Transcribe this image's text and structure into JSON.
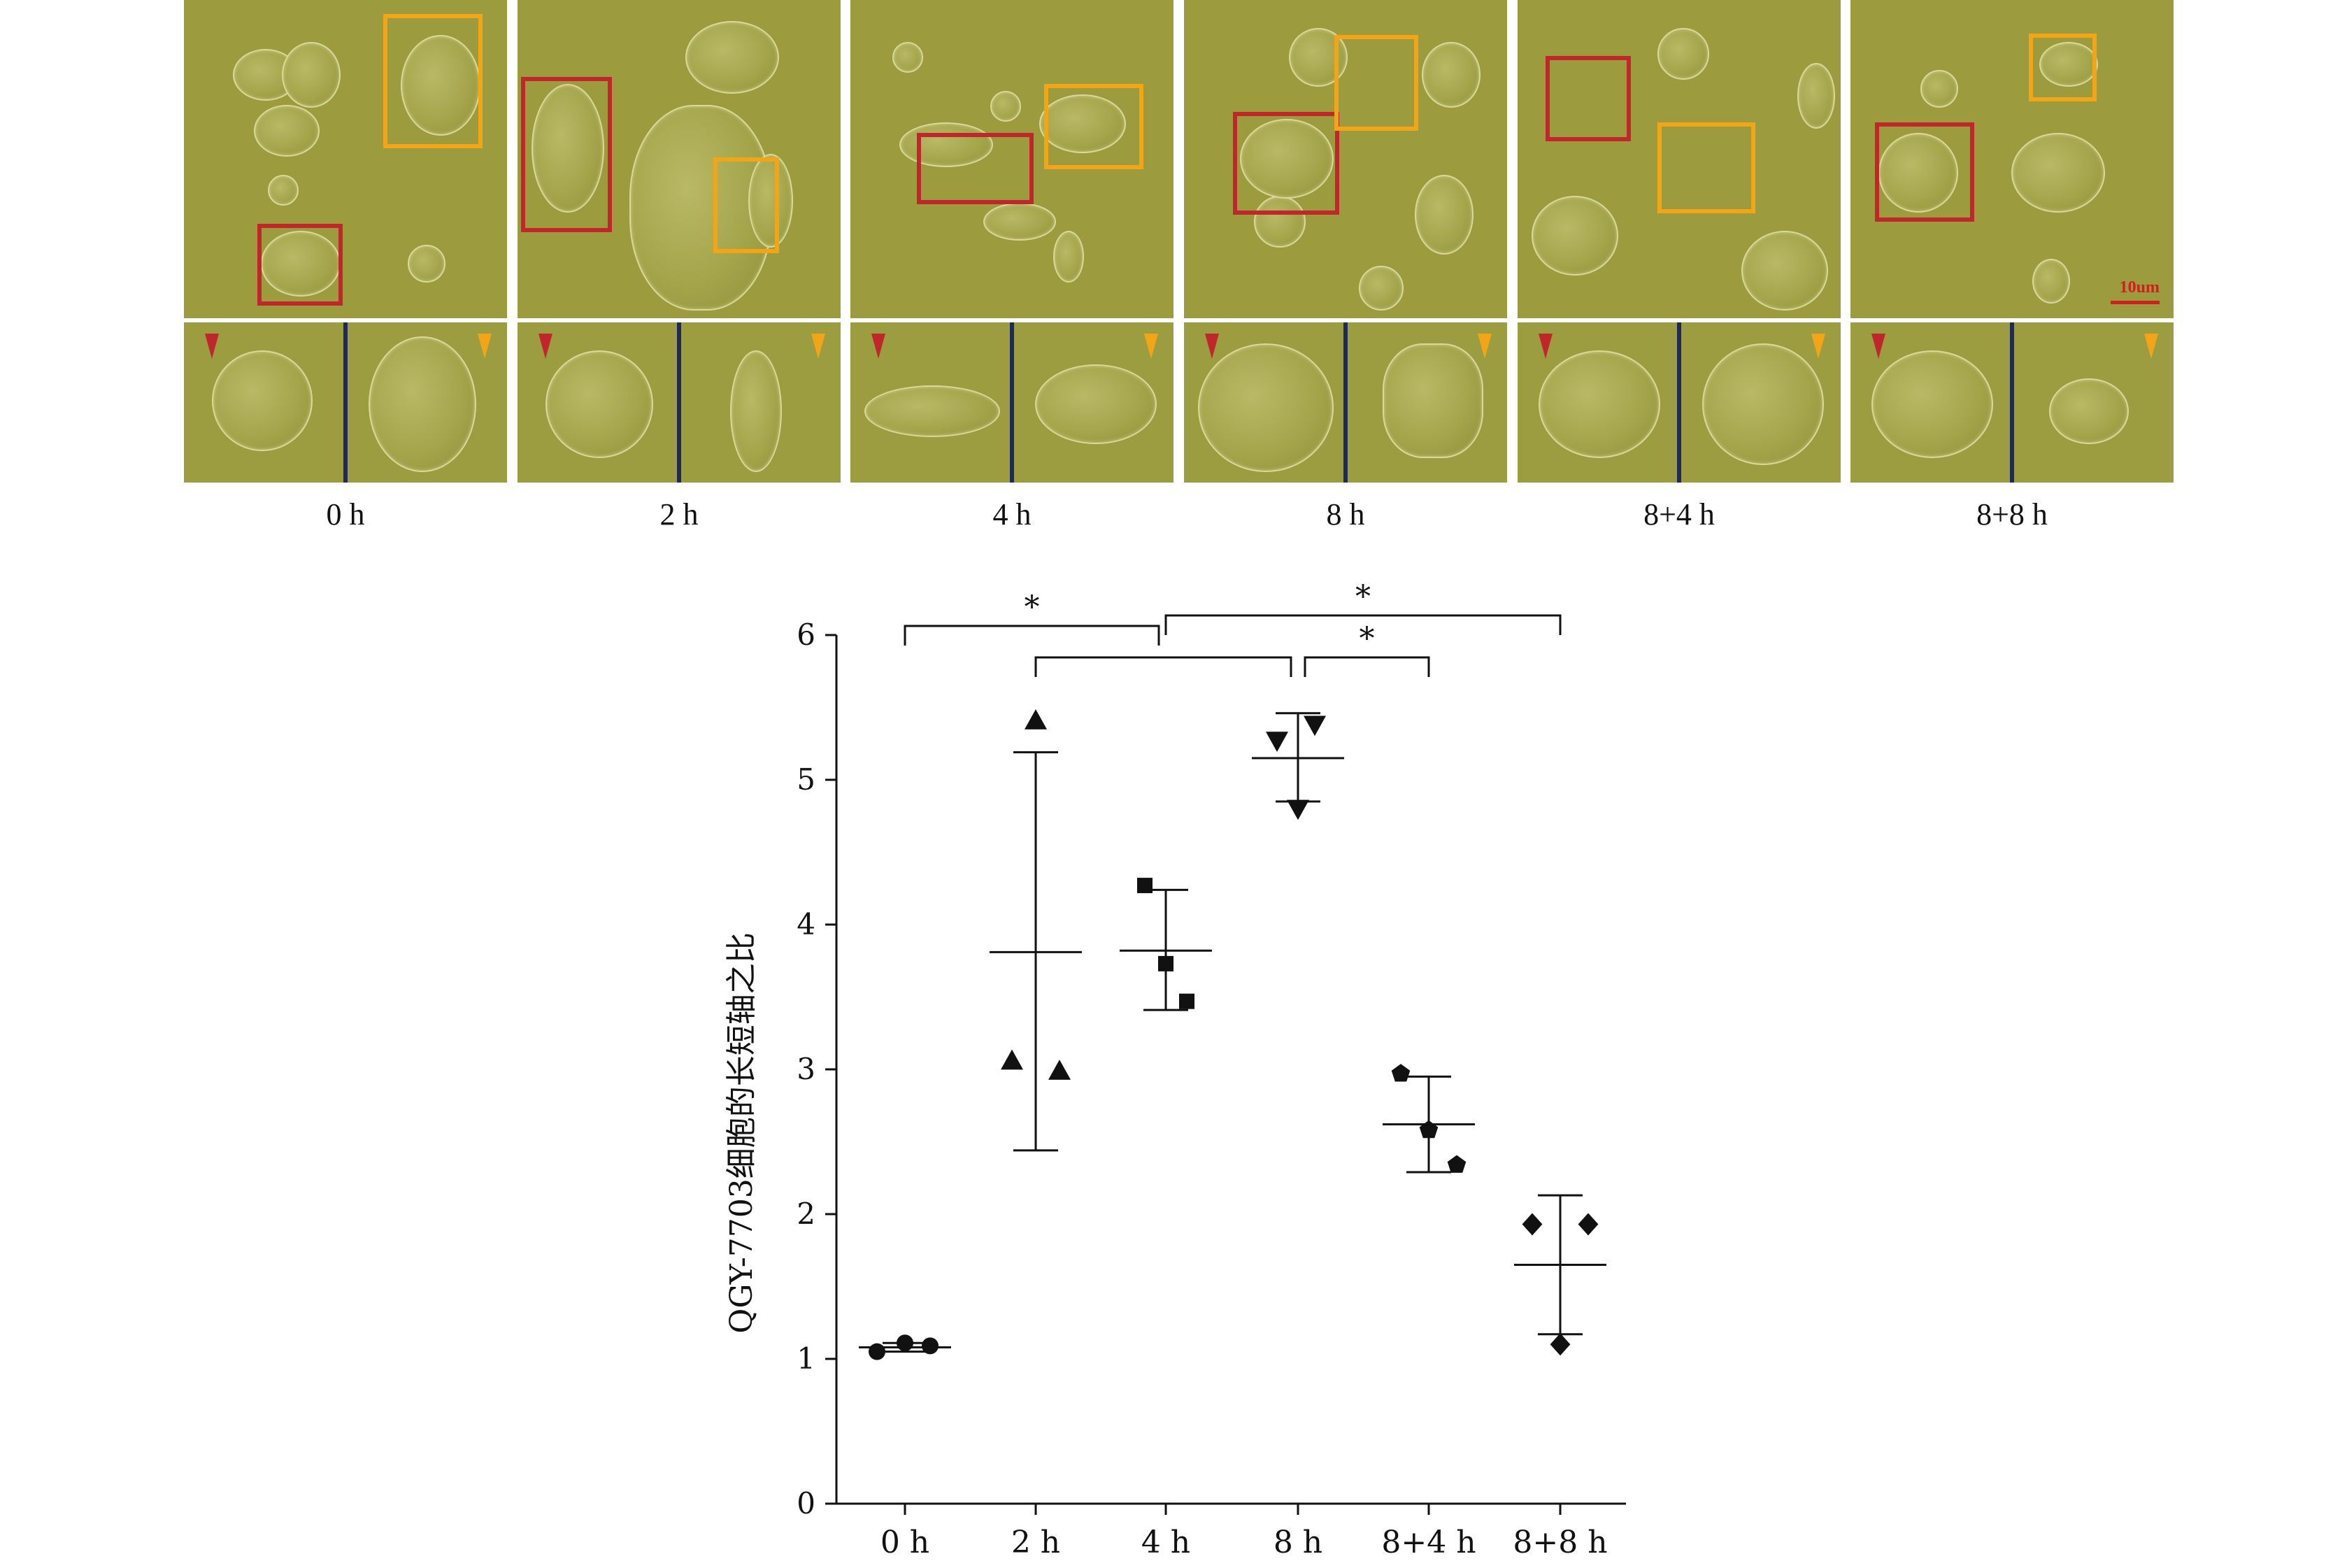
{
  "panels": [
    {
      "label": "0 h"
    },
    {
      "label": "2 h"
    },
    {
      "label": "4 h"
    },
    {
      "label": "8 h"
    },
    {
      "label": "8+4 h"
    },
    {
      "label": "8+8 h"
    }
  ],
  "scale_bar_label": "10um",
  "colors": {
    "red_box": "#c0272d",
    "orange_box": "#f2a516",
    "micrograph": "#9c9c3f",
    "separator": "#1f2a5a"
  },
  "chart_data": {
    "type": "scatter",
    "title": "",
    "xlabel": "",
    "ylabel": "QGY-7703细胞的长短轴之比",
    "categories": [
      "0 h",
      "2 h",
      "4 h",
      "8 h",
      "8+4 h",
      "8+8 h"
    ],
    "ylim": [
      0,
      6
    ],
    "yticks": [
      "0",
      "1",
      "2",
      "3",
      "4",
      "5",
      "6"
    ],
    "grid": false,
    "series": [
      {
        "category": "0 h",
        "marker": "circle",
        "points": [
          1.05,
          1.11,
          1.09
        ],
        "mean": 1.08,
        "error_low": 1.05,
        "error_high": 1.11
      },
      {
        "category": "2 h",
        "marker": "triangle-up",
        "points": [
          5.41,
          3.06,
          2.99
        ],
        "mean": 3.81,
        "error_low": 2.44,
        "error_high": 5.19
      },
      {
        "category": "4 h",
        "marker": "square",
        "points": [
          4.27,
          3.73,
          3.47
        ],
        "mean": 3.82,
        "error_low": 3.41,
        "error_high": 4.24
      },
      {
        "category": "8 h",
        "marker": "triangle-down",
        "points": [
          5.27,
          5.38,
          4.8
        ],
        "mean": 5.15,
        "error_low": 4.85,
        "error_high": 5.46
      },
      {
        "category": "8+4 h",
        "marker": "pentagon",
        "points": [
          2.97,
          2.58,
          2.34
        ],
        "mean": 2.62,
        "error_low": 2.29,
        "error_high": 2.95
      },
      {
        "category": "8+8 h",
        "marker": "diamond",
        "points": [
          1.93,
          1.93,
          1.1
        ],
        "mean": 1.65,
        "error_low": 1.17,
        "error_high": 2.13
      }
    ],
    "significance": [
      {
        "from": "0 h",
        "to": "4 h",
        "label": "*"
      },
      {
        "from": "4 h",
        "to": "8+8 h",
        "label": "*"
      },
      {
        "from": "2 h",
        "to": "8 h",
        "label": ""
      },
      {
        "from": "8 h",
        "to": "8+4 h",
        "label": "*"
      }
    ]
  }
}
